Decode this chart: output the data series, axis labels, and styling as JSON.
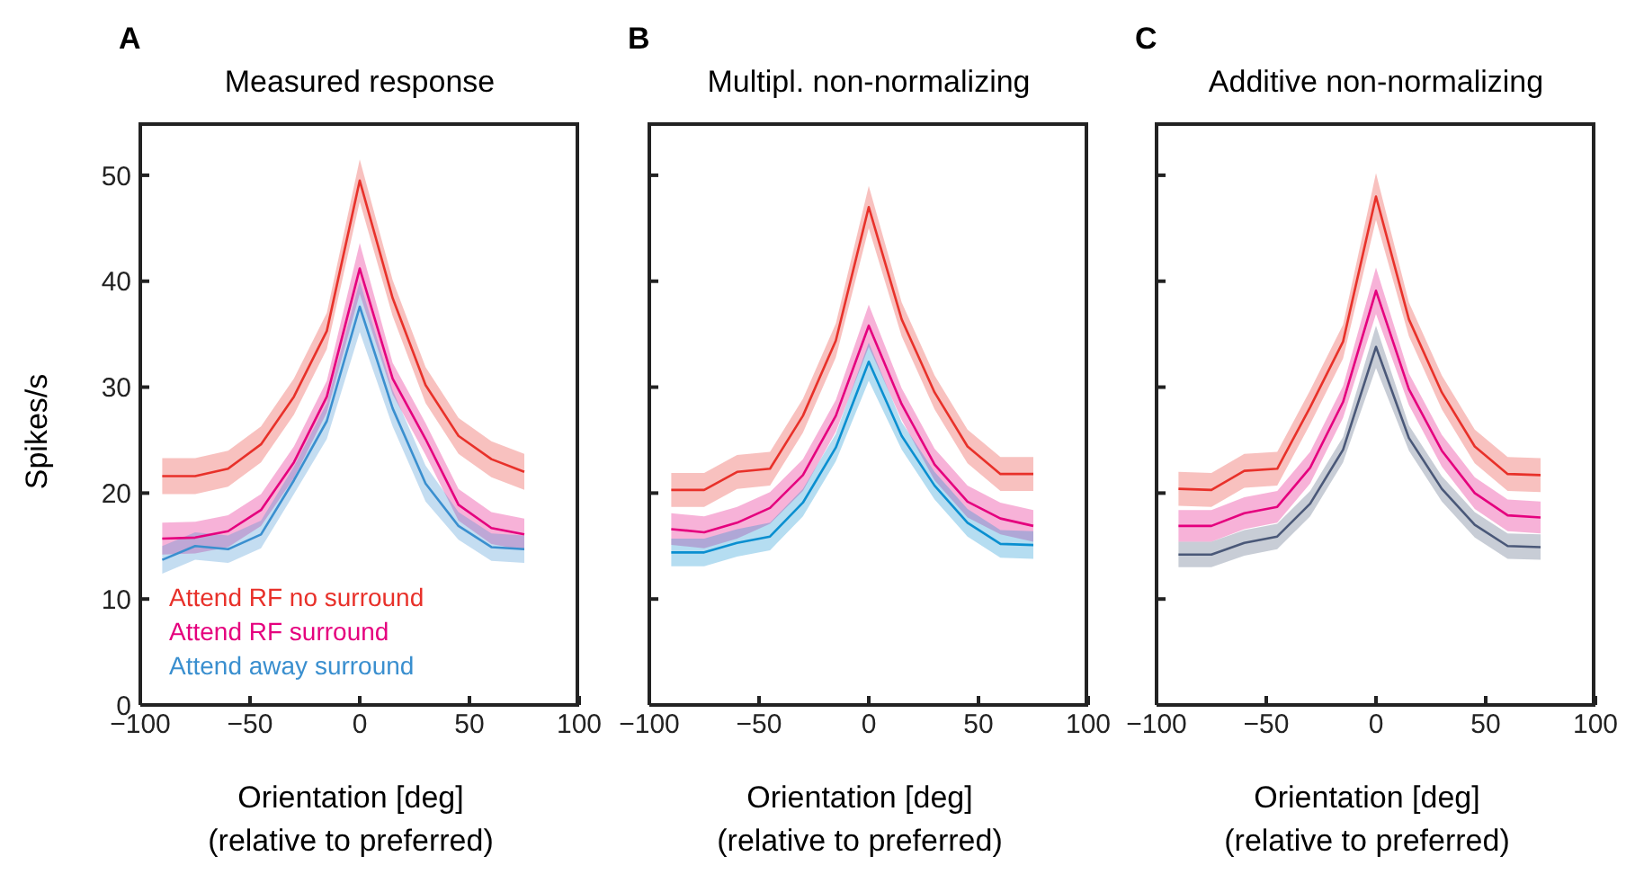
{
  "chart_data": [
    {
      "type": "line",
      "title": "Measured response",
      "annotations": [
        "A"
      ],
      "xlabel": "Orientation [deg]\n(relative to preferred)",
      "ylabel": "Spikes/s",
      "x": [
        -90,
        -75,
        -60,
        -45,
        -30,
        -15,
        0,
        15,
        30,
        45,
        60,
        75
      ],
      "xlim": [
        -100,
        100
      ],
      "xticks": [
        -100,
        -50,
        0,
        50,
        100
      ],
      "ylim": [
        0,
        55
      ],
      "yticks": [
        0,
        10,
        20,
        30,
        40,
        50
      ],
      "legend": "bottom left",
      "series": [
        {
          "name": "Attend RF no surround",
          "color": "#e8312a",
          "values": [
            21.6,
            21.6,
            22.3,
            24.6,
            29.1,
            35.3,
            49.5,
            38.4,
            30.2,
            25.4,
            23.2,
            22.0
          ],
          "lower": [
            19.9,
            19.9,
            20.6,
            22.9,
            27.4,
            33.6,
            47.5,
            36.7,
            28.5,
            23.7,
            21.5,
            20.3
          ],
          "upper": [
            23.3,
            23.3,
            24.0,
            26.3,
            30.8,
            37.0,
            51.5,
            40.1,
            31.9,
            27.1,
            24.9,
            23.7
          ]
        },
        {
          "name": "Attend RF surround",
          "color": "#e5007e",
          "values": [
            15.7,
            15.8,
            16.4,
            18.4,
            22.9,
            29.1,
            41.2,
            30.8,
            25.1,
            18.9,
            16.7,
            16.1
          ],
          "lower": [
            14.2,
            14.3,
            14.9,
            16.9,
            21.4,
            27.6,
            38.8,
            29.3,
            23.6,
            17.4,
            15.2,
            14.6
          ],
          "upper": [
            17.2,
            17.3,
            17.9,
            19.9,
            24.4,
            30.6,
            43.6,
            32.3,
            26.6,
            20.4,
            18.2,
            17.6
          ]
        },
        {
          "name": "Attend away surround",
          "color": "#3a8fcf",
          "values": [
            13.7,
            15.0,
            14.7,
            16.1,
            21.2,
            26.8,
            37.6,
            28.0,
            20.9,
            16.9,
            14.9,
            14.7
          ],
          "lower": [
            12.4,
            13.7,
            13.4,
            14.8,
            19.9,
            25.1,
            35.2,
            26.3,
            19.2,
            15.6,
            13.6,
            13.4
          ],
          "upper": [
            15.0,
            16.3,
            16.0,
            17.4,
            22.5,
            28.5,
            40.0,
            29.7,
            22.6,
            18.2,
            16.2,
            16.0
          ]
        }
      ]
    },
    {
      "type": "line",
      "title": "Multipl. non-normalizing",
      "annotations": [
        "B"
      ],
      "xlabel": "Orientation [deg]\n(relative to preferred)",
      "x": [
        -90,
        -75,
        -60,
        -45,
        -30,
        -15,
        0,
        15,
        30,
        45,
        60,
        75
      ],
      "xlim": [
        -100,
        100
      ],
      "xticks": [
        -100,
        -50,
        0,
        50,
        100
      ],
      "ylim": [
        0,
        55
      ],
      "yticks": [
        {
          "value": 0,
          "label": null
        },
        {
          "value": 10,
          "label": null
        },
        {
          "value": 20,
          "label": null
        },
        {
          "value": 30,
          "label": null
        },
        {
          "value": 40,
          "label": null
        },
        {
          "value": 50,
          "label": null
        }
      ],
      "tick_labels": "x",
      "series": [
        {
          "color": "#e8312a",
          "values": [
            20.3,
            20.3,
            22.0,
            22.3,
            27.3,
            34.4,
            47.0,
            36.4,
            29.5,
            24.4,
            21.8,
            21.8
          ],
          "lower": [
            18.7,
            18.7,
            20.4,
            20.7,
            25.7,
            32.8,
            45.0,
            34.8,
            27.9,
            22.8,
            20.2,
            20.2
          ],
          "upper": [
            21.9,
            21.9,
            23.6,
            23.9,
            28.9,
            36.0,
            49.0,
            38.0,
            31.1,
            26.0,
            23.4,
            23.4
          ]
        },
        {
          "color": "#e5007e",
          "values": [
            16.6,
            16.3,
            17.2,
            18.6,
            21.7,
            27.3,
            35.8,
            28.4,
            22.7,
            19.2,
            17.6,
            16.9
          ],
          "lower": [
            15.1,
            14.8,
            15.7,
            17.1,
            20.2,
            25.8,
            33.8,
            26.9,
            21.2,
            17.7,
            16.1,
            15.4
          ],
          "upper": [
            18.1,
            17.8,
            18.7,
            20.1,
            23.2,
            28.8,
            37.8,
            29.9,
            24.2,
            20.7,
            19.1,
            18.4
          ]
        },
        {
          "color": "#0a8fd0",
          "values": [
            14.4,
            14.4,
            15.3,
            15.9,
            19.1,
            24.3,
            32.4,
            25.4,
            20.7,
            17.2,
            15.2,
            15.1
          ],
          "lower": [
            13.1,
            13.1,
            14.0,
            14.6,
            17.8,
            23.0,
            30.6,
            24.1,
            19.4,
            15.9,
            13.9,
            13.8
          ],
          "upper": [
            15.7,
            15.7,
            16.6,
            17.2,
            20.4,
            25.6,
            34.2,
            26.7,
            22.0,
            18.5,
            16.5,
            16.4
          ]
        }
      ]
    },
    {
      "type": "line",
      "title": "Additive non-normalizing",
      "annotations": [
        "C"
      ],
      "xlabel": "Orientation [deg]\n(relative to preferred)",
      "x": [
        -90,
        -75,
        -60,
        -45,
        -30,
        -15,
        0,
        15,
        30,
        45,
        60,
        75
      ],
      "xlim": [
        -100,
        100
      ],
      "xticks": [
        -100,
        -50,
        0,
        50,
        100
      ],
      "ylim": [
        0,
        55
      ],
      "yticks": [
        {
          "value": 0,
          "label": null
        },
        {
          "value": 10,
          "label": null
        },
        {
          "value": 20,
          "label": null
        },
        {
          "value": 30,
          "label": null
        },
        {
          "value": 40,
          "label": null
        },
        {
          "value": 50,
          "label": null
        }
      ],
      "tick_labels": "x",
      "series": [
        {
          "color": "#e8312a",
          "values": [
            20.4,
            20.3,
            22.1,
            22.3,
            28.1,
            34.3,
            48.0,
            36.4,
            29.5,
            24.4,
            21.8,
            21.7
          ],
          "lower": [
            18.8,
            18.7,
            20.5,
            20.7,
            26.5,
            32.7,
            45.8,
            34.8,
            27.9,
            22.8,
            20.2,
            20.1
          ],
          "upper": [
            22.0,
            21.9,
            23.7,
            23.9,
            29.7,
            35.9,
            50.2,
            38.0,
            31.1,
            26.0,
            23.4,
            23.3
          ]
        },
        {
          "color": "#e5007e",
          "values": [
            16.9,
            16.9,
            18.1,
            18.7,
            22.4,
            28.6,
            39.1,
            29.8,
            24.0,
            20.0,
            17.9,
            17.7
          ],
          "lower": [
            15.4,
            15.4,
            16.6,
            17.2,
            20.9,
            27.1,
            36.9,
            28.3,
            22.5,
            18.5,
            16.4,
            16.2
          ],
          "upper": [
            18.4,
            18.4,
            19.6,
            20.2,
            23.9,
            30.1,
            41.3,
            31.3,
            25.5,
            21.5,
            19.4,
            19.2
          ]
        },
        {
          "color": "#4a5878",
          "values": [
            14.2,
            14.2,
            15.3,
            15.9,
            19.0,
            24.1,
            33.8,
            25.2,
            20.4,
            17.0,
            15.0,
            14.9
          ],
          "lower": [
            13.0,
            13.0,
            14.1,
            14.7,
            17.8,
            22.9,
            31.8,
            24.0,
            19.2,
            15.8,
            13.8,
            13.7
          ],
          "upper": [
            15.4,
            15.4,
            16.5,
            17.1,
            20.2,
            25.3,
            35.8,
            26.4,
            21.6,
            18.2,
            16.2,
            16.1
          ]
        }
      ]
    }
  ]
}
